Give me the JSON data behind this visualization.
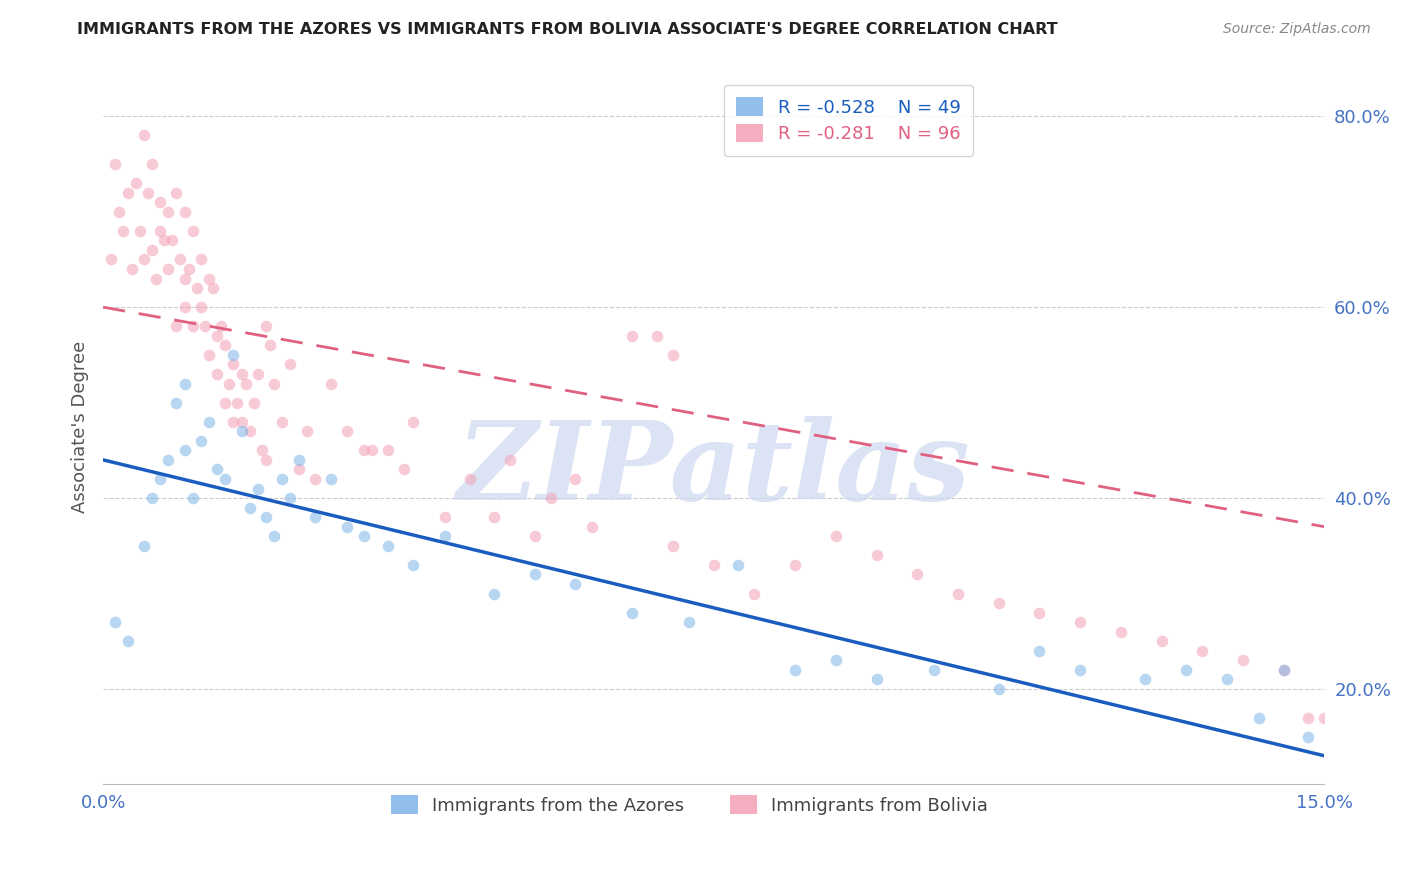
{
  "title": "IMMIGRANTS FROM THE AZORES VS IMMIGRANTS FROM BOLIVIA ASSOCIATE'S DEGREE CORRELATION CHART",
  "source": "Source: ZipAtlas.com",
  "ylabel": "Associate's Degree",
  "xlim": [
    0.0,
    15.0
  ],
  "ylim": [
    10.0,
    85.0
  ],
  "y_ticks": [
    20.0,
    40.0,
    60.0,
    80.0
  ],
  "x_ticks": [
    0.0,
    3.75,
    7.5,
    11.25,
    15.0
  ],
  "x_tick_labels": [
    "0.0%",
    "",
    "",
    "",
    "15.0%"
  ],
  "legend_r1": "R = -0.528",
  "legend_n1": "N = 49",
  "legend_r2": "R = -0.281",
  "legend_n2": "N = 96",
  "color_azores": "#7eb3e8",
  "color_bolivia": "#f4a0b5",
  "color_line_azores": "#1a5dbf",
  "color_line_bolivia": "#e06080",
  "color_axis_labels": "#4472c4",
  "color_title": "#222222",
  "color_grid": "#cccccc",
  "color_watermark": "#ccd8f0",
  "watermark_text": "ZIPatlas",
  "scatter_alpha": 0.55,
  "scatter_size": 70,
  "azores_x": [
    0.15,
    0.3,
    0.5,
    0.6,
    0.7,
    0.8,
    0.9,
    1.0,
    1.0,
    1.1,
    1.2,
    1.3,
    1.4,
    1.5,
    1.6,
    1.7,
    1.8,
    1.9,
    2.0,
    2.1,
    2.2,
    2.3,
    2.4,
    2.6,
    2.8,
    3.0,
    3.2,
    3.5,
    3.8,
    4.2,
    4.8,
    5.3,
    5.8,
    6.5,
    7.2,
    7.8,
    8.5,
    9.0,
    9.5,
    10.2,
    11.0,
    11.5,
    12.0,
    12.8,
    13.3,
    13.8,
    14.2,
    14.5,
    14.8
  ],
  "azores_y": [
    27.0,
    25.0,
    35.0,
    40.0,
    42.0,
    44.0,
    50.0,
    45.0,
    52.0,
    40.0,
    46.0,
    48.0,
    43.0,
    42.0,
    55.0,
    47.0,
    39.0,
    41.0,
    38.0,
    36.0,
    42.0,
    40.0,
    44.0,
    38.0,
    42.0,
    37.0,
    36.0,
    35.0,
    33.0,
    36.0,
    30.0,
    32.0,
    31.0,
    28.0,
    27.0,
    33.0,
    22.0,
    23.0,
    21.0,
    22.0,
    20.0,
    24.0,
    22.0,
    21.0,
    22.0,
    21.0,
    17.0,
    22.0,
    15.0
  ],
  "bolivia_x": [
    0.1,
    0.15,
    0.2,
    0.25,
    0.3,
    0.35,
    0.4,
    0.45,
    0.5,
    0.5,
    0.55,
    0.6,
    0.6,
    0.65,
    0.7,
    0.7,
    0.75,
    0.8,
    0.8,
    0.85,
    0.9,
    0.9,
    0.95,
    1.0,
    1.0,
    1.0,
    1.05,
    1.1,
    1.1,
    1.15,
    1.2,
    1.2,
    1.25,
    1.3,
    1.3,
    1.35,
    1.4,
    1.4,
    1.45,
    1.5,
    1.5,
    1.55,
    1.6,
    1.6,
    1.65,
    1.7,
    1.7,
    1.75,
    1.8,
    1.85,
    1.9,
    1.95,
    2.0,
    2.0,
    2.05,
    2.1,
    2.2,
    2.3,
    2.4,
    2.5,
    2.6,
    2.8,
    3.0,
    3.2,
    3.5,
    3.8,
    4.2,
    4.5,
    5.0,
    5.5,
    6.0,
    6.5,
    7.0,
    7.0,
    7.5,
    8.0,
    8.5,
    9.0,
    9.5,
    10.0,
    10.5,
    11.0,
    11.5,
    12.0,
    12.5,
    13.0,
    13.5,
    14.0,
    14.5,
    14.8,
    15.0,
    4.8,
    5.3,
    5.8,
    3.3,
    3.7,
    6.8
  ],
  "bolivia_y": [
    65.0,
    75.0,
    70.0,
    68.0,
    72.0,
    64.0,
    73.0,
    68.0,
    78.0,
    65.0,
    72.0,
    66.0,
    75.0,
    63.0,
    68.0,
    71.0,
    67.0,
    64.0,
    70.0,
    67.0,
    72.0,
    58.0,
    65.0,
    60.0,
    63.0,
    70.0,
    64.0,
    68.0,
    58.0,
    62.0,
    65.0,
    60.0,
    58.0,
    63.0,
    55.0,
    62.0,
    57.0,
    53.0,
    58.0,
    50.0,
    56.0,
    52.0,
    54.0,
    48.0,
    50.0,
    53.0,
    48.0,
    52.0,
    47.0,
    50.0,
    53.0,
    45.0,
    58.0,
    44.0,
    56.0,
    52.0,
    48.0,
    54.0,
    43.0,
    47.0,
    42.0,
    52.0,
    47.0,
    45.0,
    45.0,
    48.0,
    38.0,
    42.0,
    44.0,
    40.0,
    37.0,
    57.0,
    35.0,
    55.0,
    33.0,
    30.0,
    33.0,
    36.0,
    34.0,
    32.0,
    30.0,
    29.0,
    28.0,
    27.0,
    26.0,
    25.0,
    24.0,
    23.0,
    22.0,
    17.0,
    17.0,
    38.0,
    36.0,
    42.0,
    45.0,
    43.0,
    57.0
  ],
  "azores_trend_x0": 0.0,
  "azores_trend_y0": 44.0,
  "azores_trend_x1": 15.0,
  "azores_trend_y1": 13.0,
  "bolivia_trend_x0": 0.0,
  "bolivia_trend_y0": 60.0,
  "bolivia_trend_x1": 15.0,
  "bolivia_trend_y1": 37.0
}
